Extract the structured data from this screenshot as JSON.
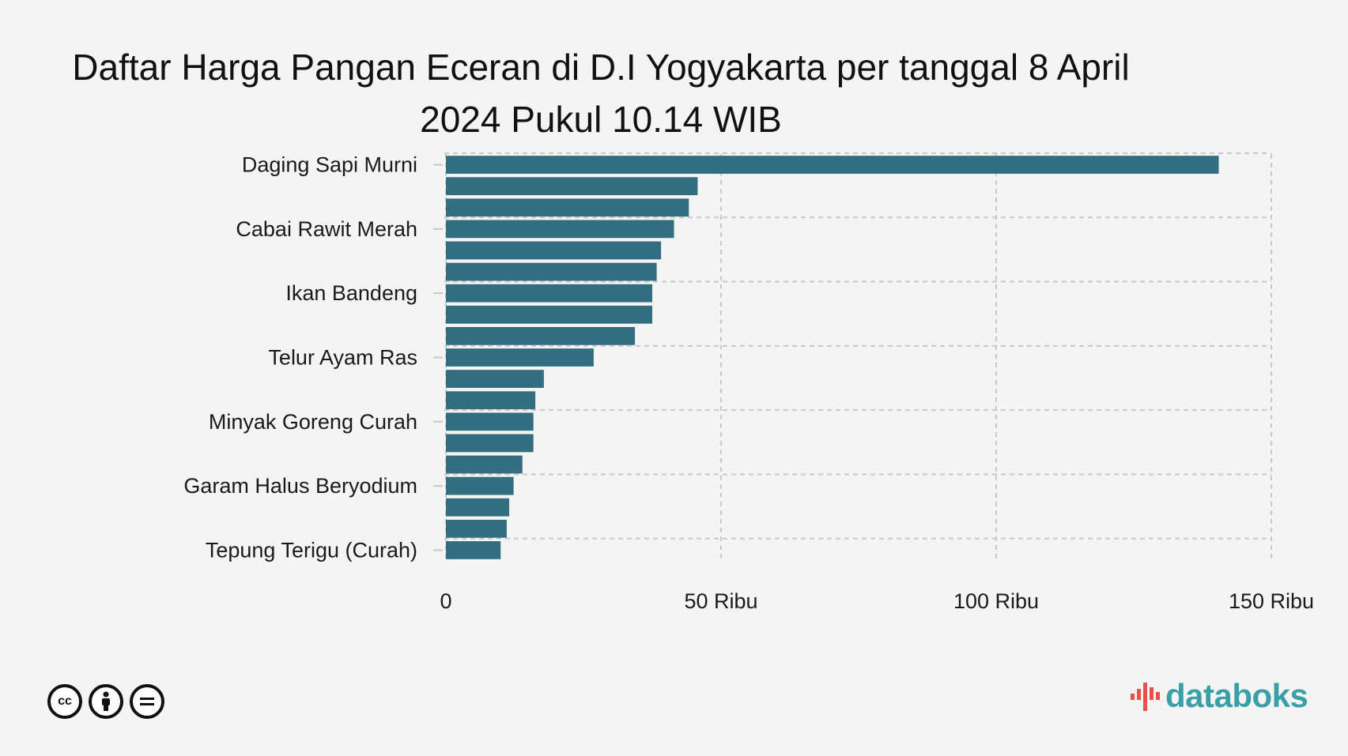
{
  "title": "Daftar Harga Pangan Eceran di D.I Yogyakarta per tanggal 8 April 2024 Pukul 10.14 WIB",
  "brand": {
    "name": "databoks",
    "accent": "#3aa0a8",
    "mark_color": "#e8504a"
  },
  "license_icons": [
    "cc-icon",
    "by-icon",
    "nd-icon"
  ],
  "chart_data": {
    "type": "bar",
    "orientation": "horizontal",
    "bar_color": "#336e80",
    "categories": [
      "Daging Sapi Murni",
      "",
      "",
      "Cabai Rawit Merah",
      "",
      "",
      "Ikan Bandeng",
      "",
      "",
      "Telur Ayam Ras",
      "",
      "",
      "Minyak Goreng Curah",
      "",
      "",
      "Garam Halus Beryodium",
      "",
      "",
      "Tepung Terigu (Curah)"
    ],
    "values": [
      140450,
      45750,
      44150,
      41450,
      39100,
      38300,
      37500,
      37500,
      34350,
      26850,
      17800,
      16250,
      15900,
      15900,
      13900,
      12300,
      11500,
      11050,
      9950
    ],
    "xlim": [
      0,
      150000
    ],
    "x_ticks": [
      0,
      50000,
      100000,
      150000
    ],
    "x_tick_labels": [
      "0",
      "50 Ribu",
      "100 Ribu",
      "150 Ribu"
    ],
    "grid": true,
    "xlabel": "",
    "ylabel": ""
  }
}
